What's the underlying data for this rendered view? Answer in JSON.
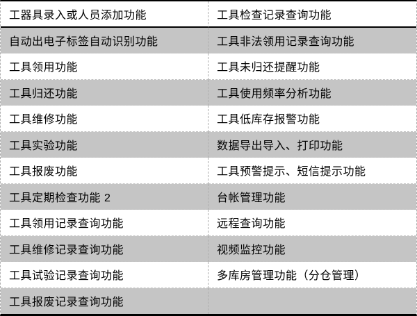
{
  "table": {
    "columns": 2,
    "rows": [
      {
        "left": "工器具录入或人员添加功能",
        "right": "工具检查记录查询功能"
      },
      {
        "left": "自动出电子标签自动识别功能",
        "right": "工具非法领用记录查询功能"
      },
      {
        "left": "工具领用功能",
        "right": "工具未归还提醒功能"
      },
      {
        "left": "工具归还功能",
        "right": "工具使用频率分析功能"
      },
      {
        "left": "工具维修功能",
        "right": "工具低库存报警功能"
      },
      {
        "left": "工具实验功能",
        "right": "数据导出导入、打印功能"
      },
      {
        "left": "工具报废功能",
        "right": "工具预警提示、短信提示功能"
      },
      {
        "left": "工具定期检查功能 2",
        "right": "台帐管理功能"
      },
      {
        "left": "工具领用记录查询功能",
        "right": "远程查询功能"
      },
      {
        "left": "工具维修记录查询功能",
        "right": "视频监控功能"
      },
      {
        "left": "工具试验记录查询功能",
        "right": "多库房管理功能（分仓管理）"
      },
      {
        "left": "工具报废记录查询功能",
        "right": ""
      }
    ]
  },
  "colors": {
    "stripe_gray": "#c5c5c5",
    "row_white": "#ffffff",
    "rule_black": "#000000",
    "dashed_border": "#adadad",
    "text": "#000000"
  }
}
